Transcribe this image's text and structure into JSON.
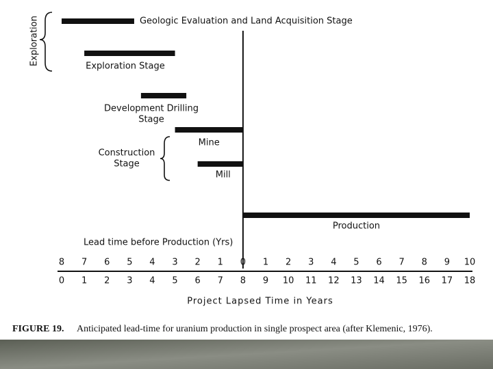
{
  "chart_data": {
    "type": "gantt",
    "tasks": [
      {
        "label": [
          "Geologic Evaluation and Land Acquisition Stage"
        ],
        "start": 0,
        "end": 3.2
      },
      {
        "label": [
          "Exploration Stage"
        ],
        "start": 1,
        "end": 5
      },
      {
        "label": [
          "Development Drilling",
          "Stage"
        ],
        "start": 3.5,
        "end": 5.5
      },
      {
        "label": [
          "Mine"
        ],
        "start": 5,
        "end": 8
      },
      {
        "label": [
          "Mill"
        ],
        "start": 6,
        "end": 8
      },
      {
        "label": [
          "Production"
        ],
        "start": 8,
        "end": 18
      }
    ],
    "groups": [
      {
        "label": [
          "Exploration"
        ]
      },
      {
        "label": [
          "Construction",
          "Stage"
        ]
      }
    ],
    "color": "#111111",
    "xlabel": "Project Lapsed Time in Years",
    "x2label": "Lead time before Production (Yrs)",
    "xlim": [
      0,
      18
    ],
    "xticks": [
      0,
      1,
      2,
      3,
      4,
      5,
      6,
      7,
      8,
      9,
      10,
      11,
      12,
      13,
      14,
      15,
      16,
      17,
      18
    ],
    "x2lim": [
      -8,
      10
    ],
    "x2ticks": [
      {
        "value": -8,
        "label": "8"
      },
      {
        "value": -7,
        "label": "7"
      },
      {
        "value": -6,
        "label": "6"
      },
      {
        "value": -5,
        "label": "5"
      },
      {
        "value": -4,
        "label": "4"
      },
      {
        "value": -3,
        "label": "3"
      },
      {
        "value": -2,
        "label": "2"
      },
      {
        "value": -1,
        "label": "1"
      },
      0,
      1,
      2,
      3,
      4,
      5,
      6,
      7,
      8,
      9,
      10
    ],
    "caption_label": "FIGURE 19.",
    "caption": "Anticipated lead-time for uranium production in single prospect area (after Klemenic, 1976)."
  }
}
